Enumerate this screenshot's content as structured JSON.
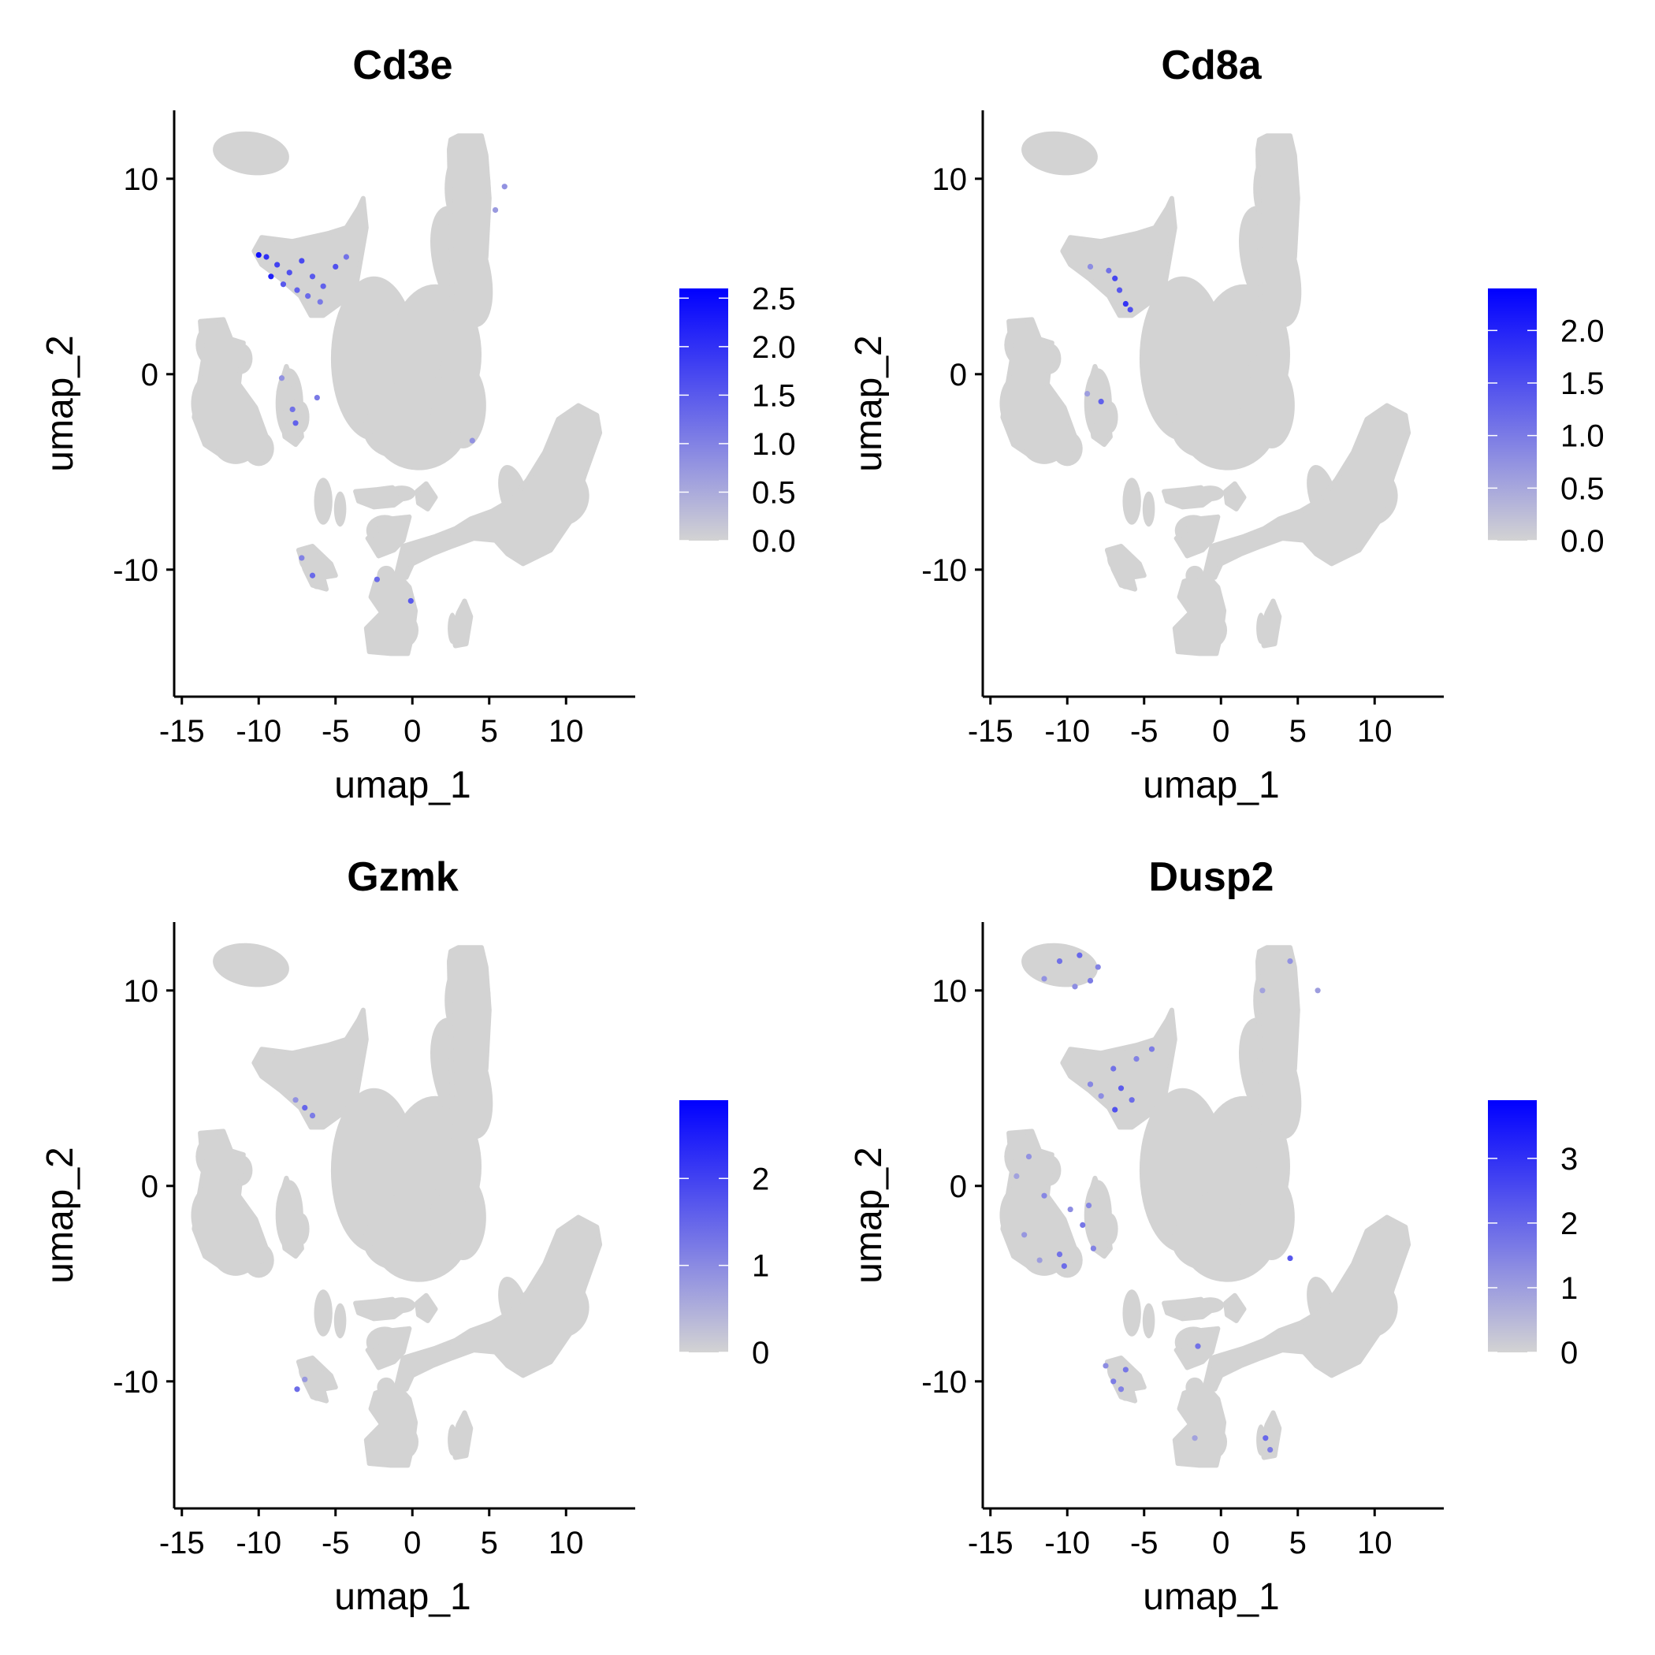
{
  "chart_data": [
    {
      "type": "scatter",
      "title": "Cd3e",
      "xlabel": "umap_1",
      "ylabel": "umap_2",
      "xlim": [
        -15.5,
        14.5
      ],
      "ylim": [
        -16.5,
        13.5
      ],
      "xticks": [
        -15,
        -10,
        -5,
        0,
        5,
        10
      ],
      "yticks": [
        -10,
        0,
        10
      ],
      "legend": {
        "min": 0,
        "max": 2.6,
        "ticks": [
          "0.0",
          "0.5",
          "1.0",
          "1.5",
          "2.0",
          "2.5"
        ],
        "tick_values": [
          0,
          0.5,
          1.0,
          1.5,
          2.0,
          2.5
        ],
        "low_color": "#d3d3d3",
        "high_color": "#0000ff"
      },
      "expressing_cells": [
        {
          "x": -9.5,
          "y": 6.0,
          "v": 2.0
        },
        {
          "x": -8.8,
          "y": 5.6,
          "v": 1.8
        },
        {
          "x": -8.0,
          "y": 5.2,
          "v": 1.6
        },
        {
          "x": -7.2,
          "y": 5.8,
          "v": 1.7
        },
        {
          "x": -6.5,
          "y": 5.0,
          "v": 1.5
        },
        {
          "x": -5.8,
          "y": 4.5,
          "v": 1.4
        },
        {
          "x": -5.0,
          "y": 5.5,
          "v": 1.6
        },
        {
          "x": -4.3,
          "y": 6.0,
          "v": 1.2
        },
        {
          "x": -6.8,
          "y": 4.0,
          "v": 1.3
        },
        {
          "x": -6.0,
          "y": 3.7,
          "v": 1.1
        },
        {
          "x": -9.2,
          "y": 5.0,
          "v": 2.2
        },
        {
          "x": -8.4,
          "y": 4.6,
          "v": 1.5
        },
        {
          "x": -7.5,
          "y": 4.3,
          "v": 1.4
        },
        {
          "x": -10.0,
          "y": 6.1,
          "v": 2.4
        },
        {
          "x": -7.8,
          "y": -1.8,
          "v": 1.2
        },
        {
          "x": -7.6,
          "y": -2.5,
          "v": 1.4
        },
        {
          "x": -6.2,
          "y": -1.2,
          "v": 1.1
        },
        {
          "x": -8.5,
          "y": -0.2,
          "v": 0.8
        },
        {
          "x": -6.5,
          "y": -10.3,
          "v": 1.3
        },
        {
          "x": -7.2,
          "y": -9.4,
          "v": 1.0
        },
        {
          "x": -2.3,
          "y": -10.5,
          "v": 1.3
        },
        {
          "x": -0.1,
          "y": -11.6,
          "v": 1.5
        },
        {
          "x": 6.0,
          "y": 9.6,
          "v": 0.8
        },
        {
          "x": 5.4,
          "y": 8.4,
          "v": 0.7
        },
        {
          "x": 3.9,
          "y": -3.4,
          "v": 0.8
        }
      ]
    },
    {
      "type": "scatter",
      "title": "Cd8a",
      "xlabel": "umap_1",
      "ylabel": "umap_2",
      "xlim": [
        -15.5,
        14.5
      ],
      "ylim": [
        -16.5,
        13.5
      ],
      "xticks": [
        -15,
        -10,
        -5,
        0,
        5,
        10
      ],
      "yticks": [
        -10,
        0,
        10
      ],
      "legend": {
        "min": 0,
        "max": 2.4,
        "ticks": [
          "0.0",
          "0.5",
          "1.0",
          "1.5",
          "2.0"
        ],
        "tick_values": [
          0,
          0.5,
          1.0,
          1.5,
          2.0
        ],
        "low_color": "#d3d3d3",
        "high_color": "#0000ff"
      },
      "expressing_cells": [
        {
          "x": -6.9,
          "y": 4.9,
          "v": 1.6
        },
        {
          "x": -6.6,
          "y": 4.3,
          "v": 1.4
        },
        {
          "x": -6.2,
          "y": 3.6,
          "v": 1.8
        },
        {
          "x": -5.9,
          "y": 3.3,
          "v": 1.5
        },
        {
          "x": -7.3,
          "y": 5.3,
          "v": 1.1
        },
        {
          "x": -8.5,
          "y": 5.5,
          "v": 0.8
        },
        {
          "x": -7.8,
          "y": -1.4,
          "v": 1.3
        },
        {
          "x": -8.7,
          "y": -1.0,
          "v": 0.6
        }
      ]
    },
    {
      "type": "scatter",
      "title": "Gzmk",
      "xlabel": "umap_1",
      "ylabel": "umap_2",
      "xlim": [
        -15.5,
        14.5
      ],
      "ylim": [
        -16.5,
        13.5
      ],
      "xticks": [
        -15,
        -10,
        -5,
        0,
        5,
        10
      ],
      "yticks": [
        -10,
        0,
        10
      ],
      "legend": {
        "min": 0,
        "max": 2.9,
        "ticks": [
          "0",
          "1",
          "2"
        ],
        "tick_values": [
          0,
          1,
          2
        ],
        "low_color": "#d3d3d3",
        "high_color": "#0000ff"
      },
      "expressing_cells": [
        {
          "x": -7.0,
          "y": 4.0,
          "v": 1.5
        },
        {
          "x": -6.5,
          "y": 3.6,
          "v": 1.2
        },
        {
          "x": -7.6,
          "y": 4.4,
          "v": 0.9
        },
        {
          "x": -7.5,
          "y": -10.4,
          "v": 1.4
        },
        {
          "x": -7.0,
          "y": -9.9,
          "v": 0.8
        }
      ]
    },
    {
      "type": "scatter",
      "title": "Dusp2",
      "xlabel": "umap_1",
      "ylabel": "umap_2",
      "xlim": [
        -15.5,
        14.5
      ],
      "ylim": [
        -16.5,
        13.5
      ],
      "xticks": [
        -15,
        -10,
        -5,
        0,
        5,
        10
      ],
      "yticks": [
        -10,
        0,
        10
      ],
      "legend": {
        "min": 0,
        "max": 3.9,
        "ticks": [
          "0",
          "1",
          "2",
          "3"
        ],
        "tick_values": [
          0,
          1,
          2,
          3
        ],
        "low_color": "#d3d3d3",
        "high_color": "#0000ff"
      },
      "expressing_cells": [
        {
          "x": -10.5,
          "y": 11.5,
          "v": 1.8
        },
        {
          "x": -9.2,
          "y": 11.8,
          "v": 2.0
        },
        {
          "x": -8.0,
          "y": 11.2,
          "v": 1.5
        },
        {
          "x": -11.5,
          "y": 10.6,
          "v": 1.2
        },
        {
          "x": -8.5,
          "y": 10.5,
          "v": 1.6
        },
        {
          "x": -9.5,
          "y": 10.2,
          "v": 1.3
        },
        {
          "x": -7.0,
          "y": 6.0,
          "v": 1.8
        },
        {
          "x": -6.5,
          "y": 5.0,
          "v": 2.2
        },
        {
          "x": -5.8,
          "y": 4.4,
          "v": 1.9
        },
        {
          "x": -6.9,
          "y": 3.9,
          "v": 2.4
        },
        {
          "x": -5.5,
          "y": 6.5,
          "v": 1.5
        },
        {
          "x": -4.5,
          "y": 7.0,
          "v": 1.6
        },
        {
          "x": -8.5,
          "y": 5.2,
          "v": 1.4
        },
        {
          "x": -7.8,
          "y": 4.6,
          "v": 1.3
        },
        {
          "x": -12.5,
          "y": 1.5,
          "v": 1.2
        },
        {
          "x": -11.5,
          "y": -0.5,
          "v": 1.4
        },
        {
          "x": -12.8,
          "y": -2.5,
          "v": 1.1
        },
        {
          "x": -10.5,
          "y": -3.5,
          "v": 1.8
        },
        {
          "x": -9.0,
          "y": -2.0,
          "v": 1.7
        },
        {
          "x": -8.3,
          "y": -3.2,
          "v": 1.5
        },
        {
          "x": -9.8,
          "y": -1.2,
          "v": 1.3
        },
        {
          "x": -8.6,
          "y": -1.0,
          "v": 1.4
        },
        {
          "x": -10.2,
          "y": -4.1,
          "v": 1.9
        },
        {
          "x": -11.8,
          "y": -3.8,
          "v": 1.0
        },
        {
          "x": -13.3,
          "y": 0.5,
          "v": 0.9
        },
        {
          "x": -7.0,
          "y": -10.0,
          "v": 1.6
        },
        {
          "x": -6.2,
          "y": -9.4,
          "v": 1.7
        },
        {
          "x": -7.5,
          "y": -9.2,
          "v": 1.3
        },
        {
          "x": -6.5,
          "y": -10.4,
          "v": 1.5
        },
        {
          "x": -1.5,
          "y": -8.2,
          "v": 1.8
        },
        {
          "x": -1.7,
          "y": -12.9,
          "v": 0.9
        },
        {
          "x": 2.9,
          "y": -12.9,
          "v": 2.0
        },
        {
          "x": 3.2,
          "y": -13.5,
          "v": 1.6
        },
        {
          "x": 4.5,
          "y": -3.7,
          "v": 2.3
        },
        {
          "x": 4.5,
          "y": 11.5,
          "v": 1.2
        },
        {
          "x": 6.3,
          "y": 10.0,
          "v": 1.0
        },
        {
          "x": 2.7,
          "y": 10.0,
          "v": 0.9
        }
      ]
    }
  ]
}
